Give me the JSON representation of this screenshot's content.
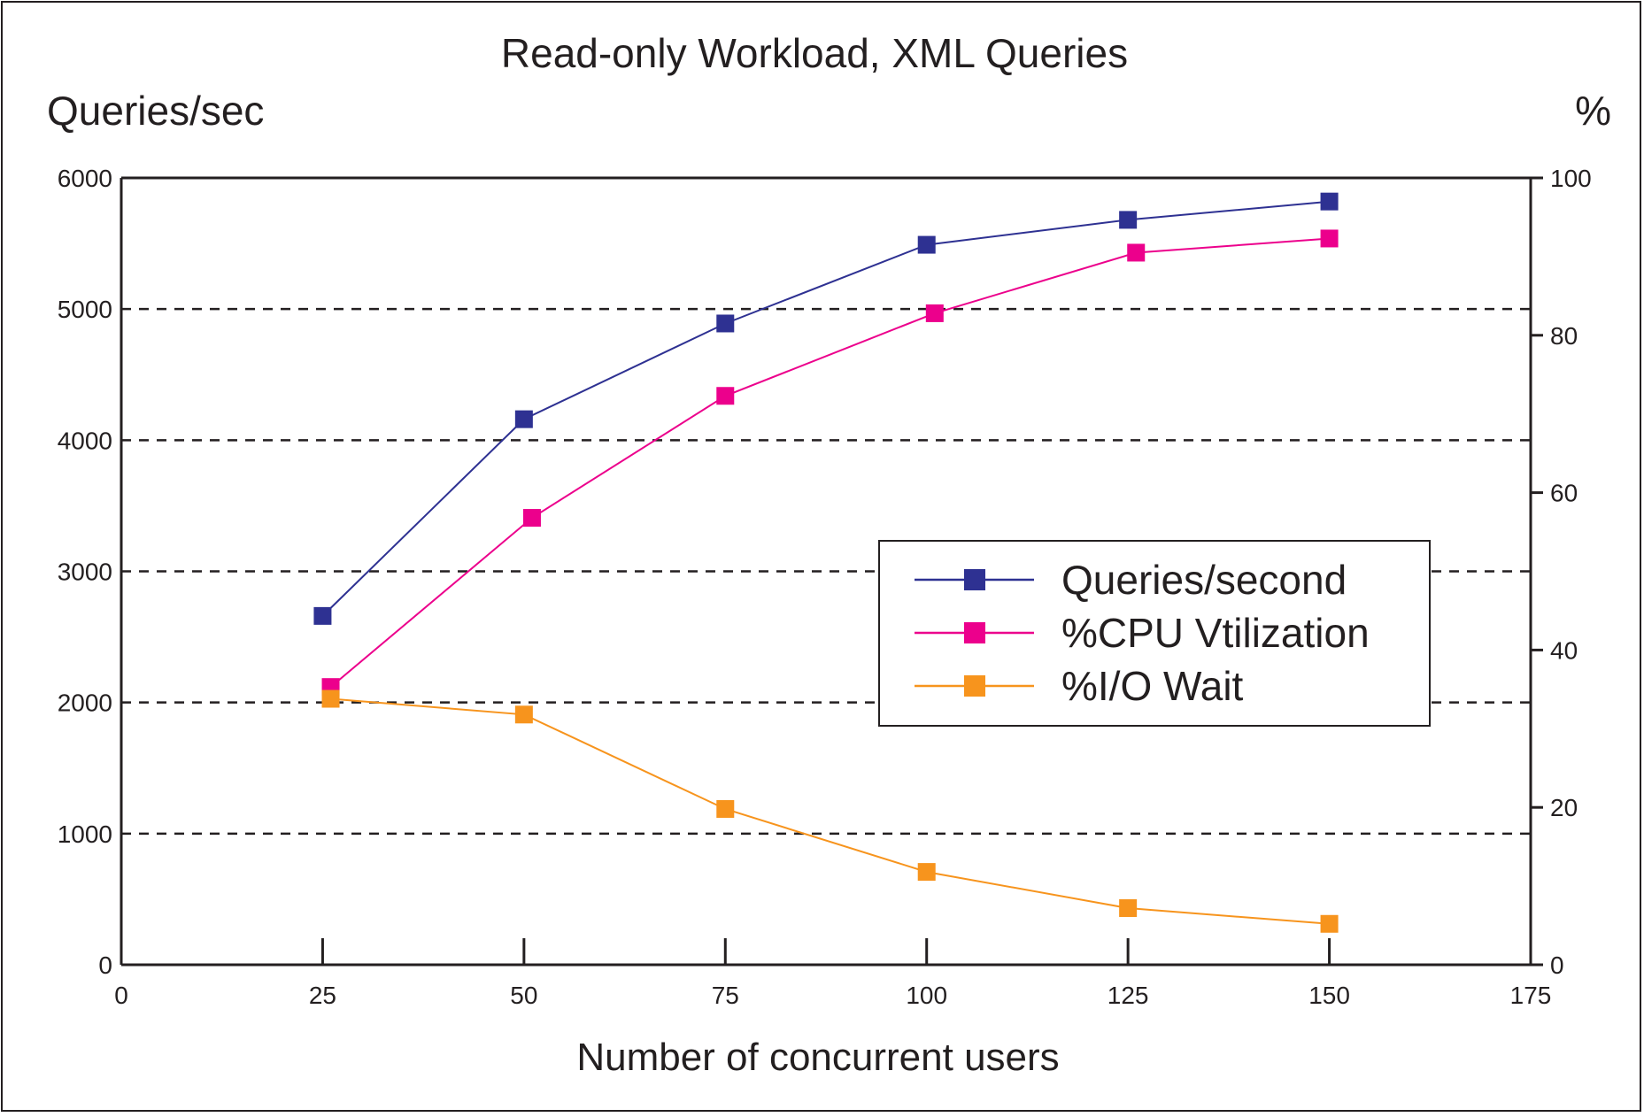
{
  "chart_data": {
    "type": "line",
    "title": "Read-only Workload, XML Queries",
    "xlabel": "Number of concurrent users",
    "ylabel_left": "Queries/sec",
    "ylabel_right": "%",
    "xlim": [
      0,
      175
    ],
    "ylim_left": [
      0,
      6000
    ],
    "ylim_right": [
      0,
      100
    ],
    "x_ticks": [
      "0",
      "25",
      "50",
      "75",
      "100",
      "125",
      "150",
      "175"
    ],
    "y_ticks_left": [
      "0",
      "1000",
      "2000",
      "3000",
      "4000",
      "5000",
      "6000"
    ],
    "y_ticks_right": [
      "0",
      "20",
      "40",
      "60",
      "80",
      "100"
    ],
    "grid": "horizontal dashed at 1000-5000",
    "legend_position": "center-right",
    "series": [
      {
        "name": "Queries/second",
        "axis": "left",
        "color": "#2e3192",
        "x": [
          25,
          50,
          75,
          100,
          125,
          150
        ],
        "y": [
          2660,
          4160,
          4890,
          5490,
          5680,
          5820
        ]
      },
      {
        "name": "%CPU Vtilization",
        "axis": "right",
        "color": "#ec008c",
        "x": [
          26,
          51,
          75,
          101,
          126,
          150
        ],
        "y": [
          35.3,
          56.8,
          72.3,
          82.8,
          90.5,
          92.3
        ]
      },
      {
        "name": "%I/O Wait",
        "axis": "right",
        "color": "#f7941d",
        "x": [
          26,
          50,
          75,
          100,
          125,
          150
        ],
        "y": [
          33.8,
          31.8,
          19.8,
          11.8,
          7.2,
          5.2
        ]
      }
    ]
  }
}
